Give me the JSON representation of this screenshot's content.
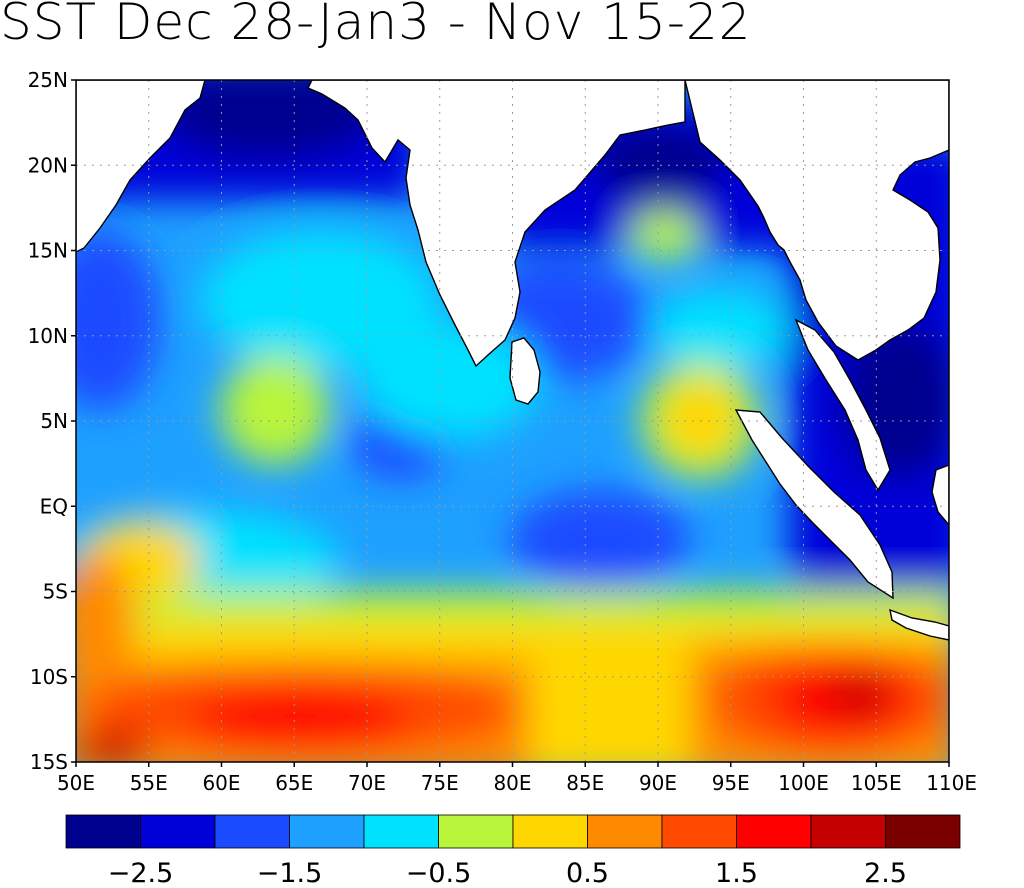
{
  "title": "SST Dec 28-Jan3 - Nov 15-22",
  "map": {
    "lon_range": [
      50,
      110
    ],
    "lat_range": [
      -15,
      25
    ],
    "lon_ticks": [
      "50E",
      "55E",
      "60E",
      "65E",
      "70E",
      "75E",
      "80E",
      "85E",
      "90E",
      "95E",
      "100E",
      "105E",
      "110E"
    ],
    "lat_ticks": [
      "25N",
      "20N",
      "15N",
      "10N",
      "5N",
      "EQ",
      "5S",
      "10S",
      "15S"
    ],
    "grid": true,
    "land_color": "#ffffff"
  },
  "colorbar": {
    "colors": [
      "#00008f",
      "#0000d9",
      "#1a4bff",
      "#1ea0ff",
      "#00e1ff",
      "#b9f53a",
      "#ffd700",
      "#ff8a00",
      "#ff4a00",
      "#ff0000",
      "#c40000",
      "#7a0000"
    ],
    "labels": [
      "-2.5",
      "-1.5",
      "-0.5",
      "0.5",
      "1.5",
      "2.5"
    ]
  }
}
